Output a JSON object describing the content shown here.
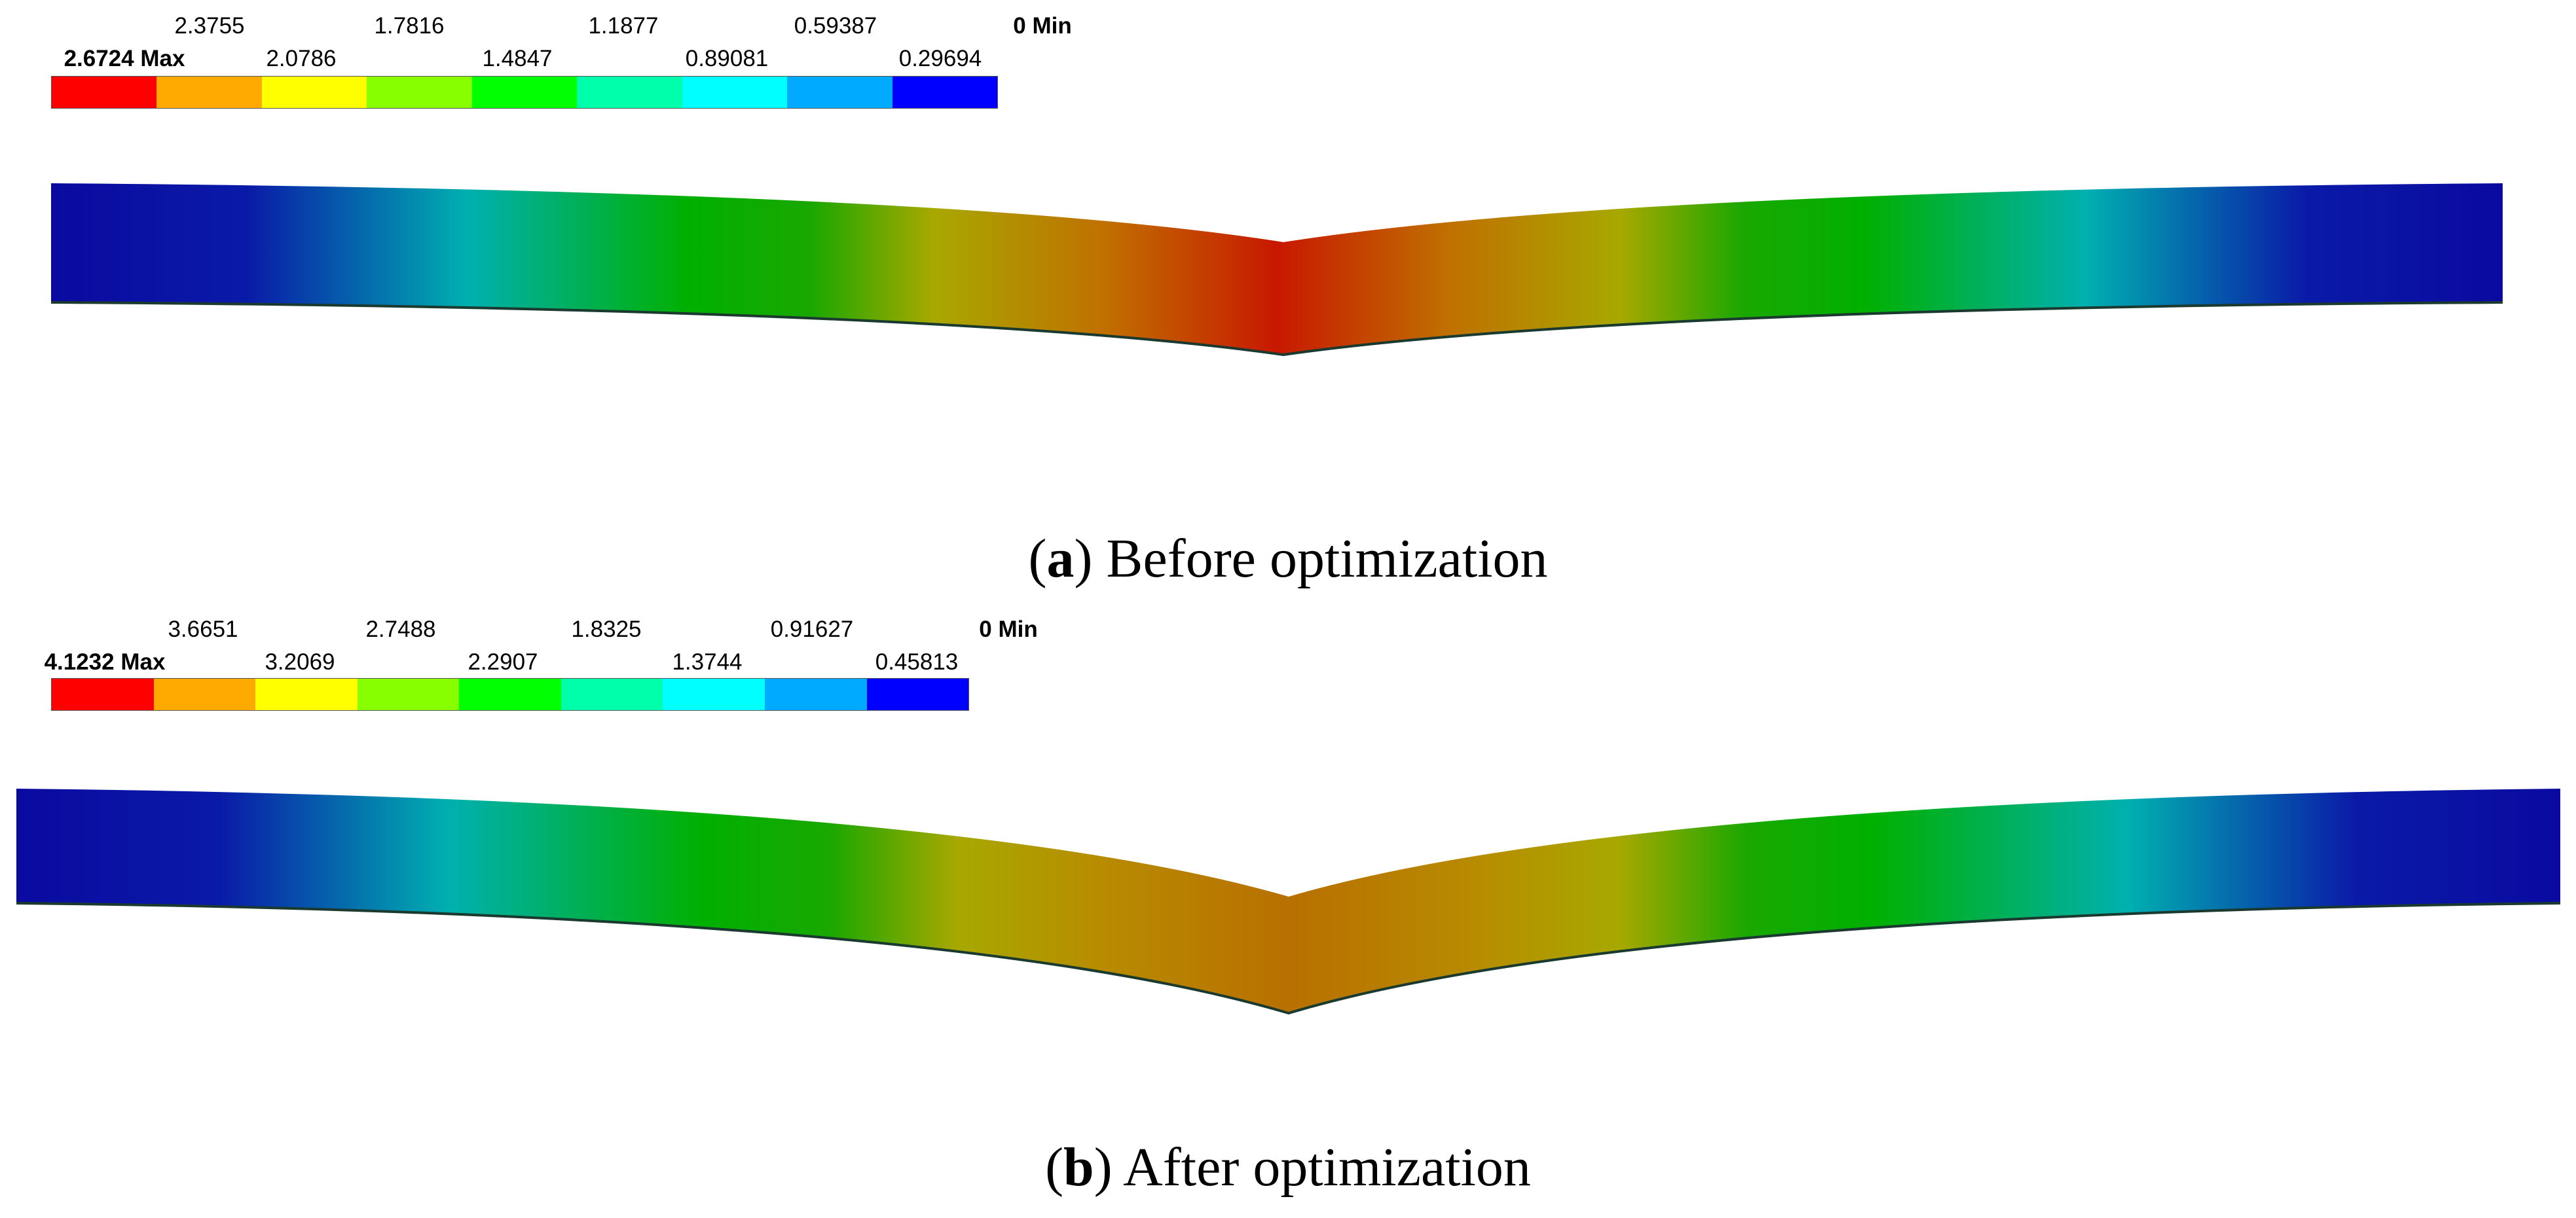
{
  "colors": {
    "scale": [
      "#ff0000",
      "#ffaa00",
      "#ffff00",
      "#88ff00",
      "#00ff00",
      "#00ffaa",
      "#00ffff",
      "#00aaff",
      "#0000ff"
    ]
  },
  "panels": [
    {
      "caption_letter": "a",
      "caption_text": ") Before optimization",
      "caption_open": "(",
      "legend": {
        "max_label": "2.6724 Max",
        "min_label": "0 Min",
        "top_labels": [
          "2.3755",
          "1.7816",
          "1.1877",
          "0.59387"
        ],
        "bottom_labels": [
          "2.0786",
          "1.4847",
          "0.89081",
          "0.29694"
        ]
      }
    },
    {
      "caption_letter": "b",
      "caption_text": ") After optimization",
      "caption_open": "(",
      "legend": {
        "max_label": "4.1232 Max",
        "min_label": "0 Min",
        "top_labels": [
          "3.6651",
          "2.7488",
          "1.8325",
          "0.91627"
        ],
        "bottom_labels": [
          "3.2069",
          "2.2907",
          "1.3744",
          "0.45813"
        ]
      }
    }
  ]
}
